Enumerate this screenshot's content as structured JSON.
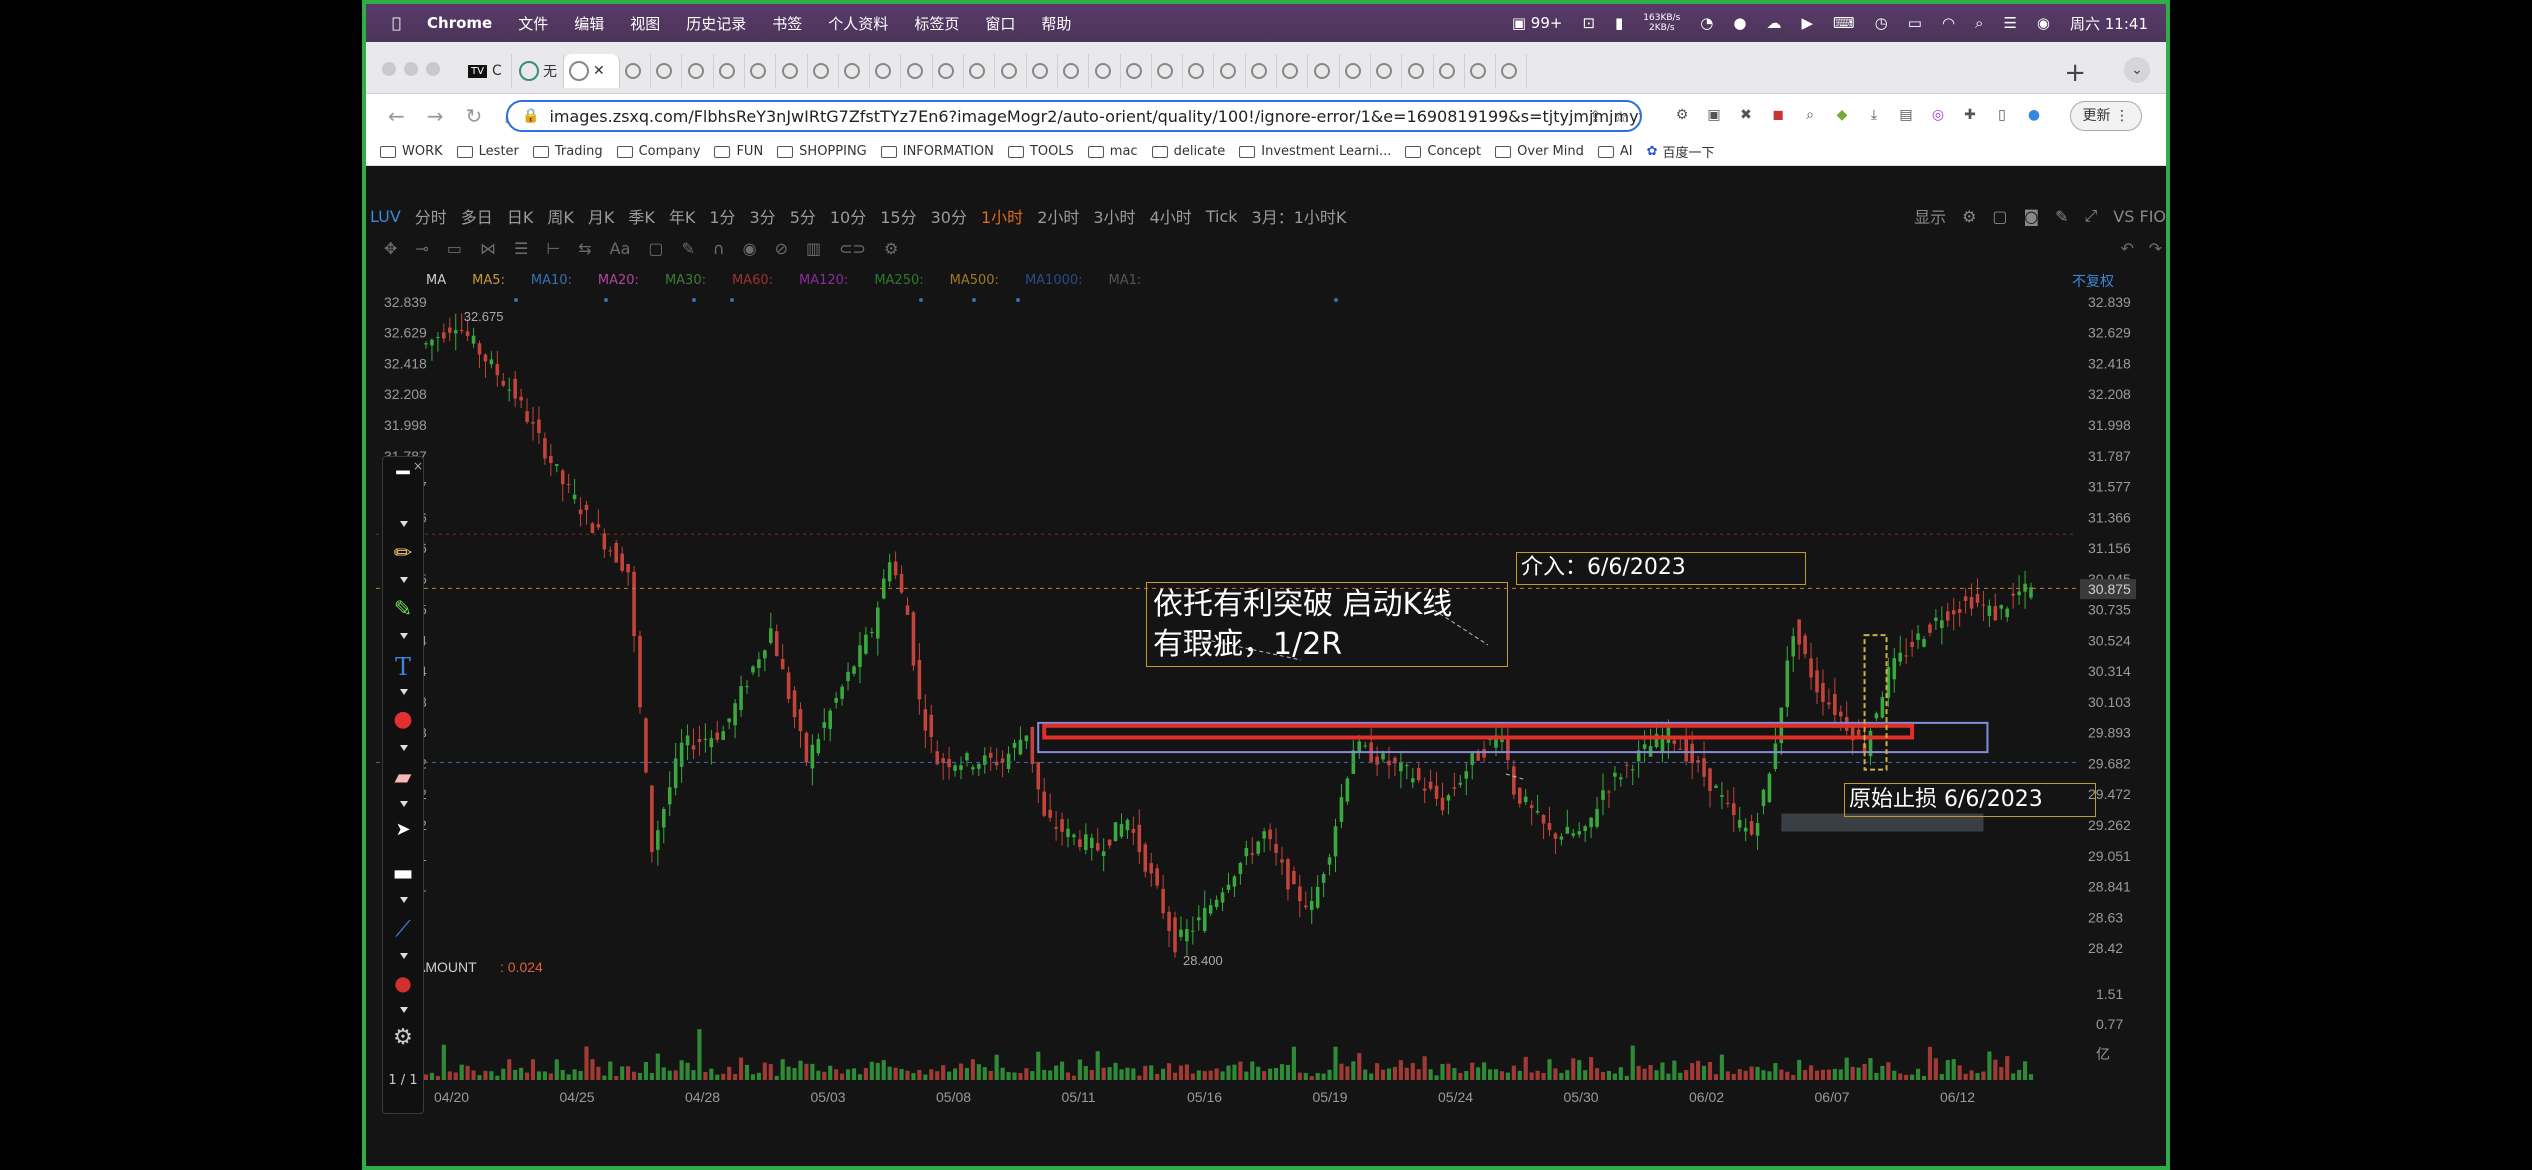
{
  "menubar": {
    "app": "Chrome",
    "items": [
      "文件",
      "编辑",
      "视图",
      "历史记录",
      "书签",
      "个人资料",
      "标签页",
      "窗口",
      "帮助"
    ],
    "badge": "99+",
    "net_up": "163KB/s",
    "net_down": "2KB/s",
    "clock": "周六 11:41"
  },
  "browser": {
    "tab_letter": "C",
    "url": "images.zsxq.com/FlbhsReY3nJwIRtG7ZfstTYz7En6?imageMogr2/auto-orient/quality/100!/ignore-error/1&e=1690819199&s=tjtyjmjmjmyy&token=klx...",
    "update_label": "更新",
    "bookmarks": [
      "WORK",
      "Lester",
      "Trading",
      "Company",
      "FUN",
      "SHOPPING",
      "INFORMATION",
      "TOOLS",
      "mac",
      "delicate",
      "Investment Learni...",
      "Concept",
      "Over Mind",
      "AI",
      "百度一下"
    ]
  },
  "app": {
    "symbol": "LUV",
    "periods": [
      "分时",
      "多日",
      "日K",
      "周K",
      "月K",
      "季K",
      "年K",
      "1分",
      "3分",
      "5分",
      "10分",
      "15分",
      "30分",
      "1小时",
      "2小时",
      "3小时",
      "4小时",
      "Tick",
      "3月：1小时K"
    ],
    "active_period": "1小时",
    "display_label": "显示",
    "right_label": "VS FIO",
    "fq": "不复权",
    "ma": [
      {
        "label": "MA",
        "color": "#cccccc"
      },
      {
        "label": "MA5:",
        "color": "#c29a3c"
      },
      {
        "label": "MA10:",
        "color": "#3a6fb0"
      },
      {
        "label": "MA20:",
        "color": "#b0459a"
      },
      {
        "label": "MA30:",
        "color": "#3a7c3a"
      },
      {
        "label": "MA60:",
        "color": "#a03030"
      },
      {
        "label": "MA120:",
        "color": "#8a2aa0"
      },
      {
        "label": "MA250:",
        "color": "#2c7a2c"
      },
      {
        "label": "MA500:",
        "color": "#a07a20"
      },
      {
        "label": "MA1000:",
        "color": "#2a4a8a"
      },
      {
        "label": "MA1:",
        "color": "#555555"
      }
    ],
    "amount_label": "AMOUNT",
    "amount_value": ": 0.024"
  },
  "chart_data": {
    "type": "candlestick",
    "symbol": "LUV",
    "period": "1小时",
    "y_ticks": [
      32.839,
      32.629,
      32.418,
      32.208,
      31.998,
      31.787,
      31.577,
      31.366,
      31.156,
      30.945,
      30.735,
      30.524,
      30.314,
      30.103,
      29.893,
      29.682,
      29.472,
      29.262,
      29.051,
      28.841,
      28.63,
      28.42
    ],
    "ylim": [
      28.42,
      32.839
    ],
    "current_price": "30.875",
    "x_ticks": [
      "04/20",
      "04/25",
      "04/28",
      "05/03",
      "05/08",
      "05/11",
      "05/16",
      "05/19",
      "05/24",
      "05/30",
      "06/02",
      "06/07",
      "06/12"
    ],
    "high_label": "32.675",
    "low_label": "28.400",
    "path": [
      [
        0,
        32.55
      ],
      [
        5,
        32.7
      ],
      [
        8,
        32.55
      ],
      [
        15,
        32.2
      ],
      [
        23,
        31.6
      ],
      [
        30,
        31.2
      ],
      [
        34,
        31.0
      ],
      [
        38,
        29.1
      ],
      [
        43,
        29.8
      ],
      [
        50,
        29.9
      ],
      [
        58,
        30.6
      ],
      [
        64,
        29.7
      ],
      [
        70,
        30.2
      ],
      [
        75,
        30.6
      ],
      [
        78,
        31.1
      ],
      [
        81,
        30.7
      ],
      [
        83,
        30.1
      ],
      [
        86,
        29.7
      ],
      [
        92,
        29.7
      ],
      [
        97,
        29.7
      ],
      [
        101,
        29.9
      ],
      [
        104,
        29.3
      ],
      [
        108,
        29.2
      ],
      [
        113,
        29.1
      ],
      [
        118,
        29.3
      ],
      [
        123,
        28.8
      ],
      [
        126,
        28.45
      ],
      [
        130,
        28.6
      ],
      [
        135,
        28.9
      ],
      [
        141,
        29.2
      ],
      [
        146,
        28.8
      ],
      [
        149,
        28.7
      ],
      [
        152,
        29.1
      ],
      [
        156,
        29.8
      ],
      [
        161,
        29.7
      ],
      [
        166,
        29.6
      ],
      [
        171,
        29.4
      ],
      [
        176,
        29.7
      ],
      [
        181,
        29.9
      ],
      [
        183,
        29.5
      ],
      [
        189,
        29.2
      ],
      [
        195,
        29.2
      ],
      [
        198,
        29.5
      ],
      [
        203,
        29.7
      ],
      [
        209,
        29.9
      ],
      [
        213,
        29.7
      ],
      [
        217,
        29.5
      ],
      [
        220,
        29.3
      ],
      [
        223,
        29.2
      ],
      [
        226,
        29.6
      ],
      [
        230,
        30.6
      ],
      [
        234,
        30.2
      ],
      [
        238,
        30.0
      ],
      [
        242,
        29.8
      ],
      [
        246,
        30.3
      ],
      [
        250,
        30.5
      ],
      [
        255,
        30.7
      ],
      [
        260,
        30.8
      ],
      [
        264,
        30.7
      ],
      [
        268,
        30.85
      ],
      [
        270,
        30.87
      ]
    ],
    "volume": [
      0.1,
      0.25,
      0.15,
      0.55,
      0.35,
      0.2,
      0.3,
      0.4,
      0.25,
      0.15,
      0.3,
      0.2,
      0.18,
      0.45,
      0.3,
      0.25,
      0.35,
      0.2,
      0.4,
      0.3,
      0.15,
      0.25,
      0.3,
      0.2,
      0.22,
      0.35,
      0.28,
      0.5,
      0.3,
      0.2,
      0.18,
      0.3,
      0.15,
      0.25,
      0.2,
      0.35,
      0.22,
      0.3,
      0.28,
      0.4,
      0.25,
      0.2,
      0.3,
      0.35,
      0.3,
      0.25,
      0.5,
      0.3,
      0.2,
      0.15
    ],
    "volume_ticks": [
      "1.51",
      "0.77",
      "亿"
    ],
    "annotations": [
      {
        "text_line1": "依托有利突破  启动K线",
        "text_line2": "有瑕疵，1/2R"
      },
      {
        "text": "介入：6/6/2023"
      },
      {
        "text": "原始止损 6/6/2023"
      }
    ],
    "levels": {
      "red_box": [
        29.94,
        29.86
      ],
      "blue_box": [
        29.96,
        29.76
      ],
      "orange_dashed": [
        30.88
      ],
      "blue_dashed": [
        29.69
      ],
      "red_dashed": [
        31.25
      ]
    }
  },
  "drawtool": {
    "page": "1 / 1"
  }
}
